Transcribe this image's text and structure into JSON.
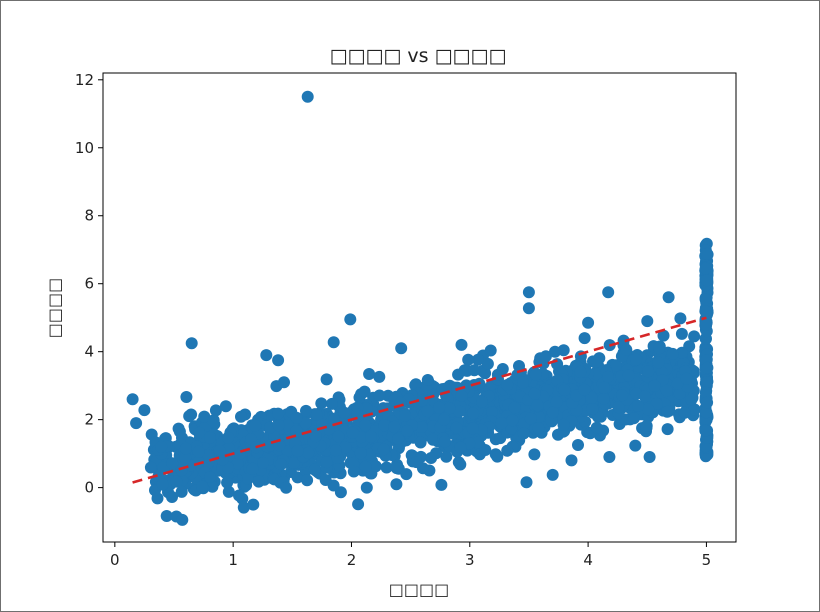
{
  "chart_data": {
    "type": "scatter",
    "title": "□□□□ vs □□□□",
    "xlabel": "□□□□",
    "ylabel": "□□□□",
    "xlim": [
      -0.1,
      5.25
    ],
    "ylim": [
      -1.6,
      12.2
    ],
    "xticks": [
      "0",
      "1",
      "2",
      "3",
      "4",
      "5"
    ],
    "yticks": [
      "0",
      "2",
      "4",
      "6",
      "8",
      "10",
      "12"
    ],
    "grid": false,
    "legend": "none",
    "colors": {
      "points": "#1f77b4",
      "reference_line": "#d62728"
    },
    "series": [
      {
        "kind": "points",
        "generated_bulk": {
          "count": 1800,
          "x_min": 0.3,
          "x_max": 4.9,
          "y_at_x_min": 0.6,
          "y_at_x_max": 3.3,
          "y_spread": 0.55
        },
        "cap_column": {
          "x": 5.0,
          "y_min": 0.9,
          "y_max": 7.2,
          "count": 160
        },
        "outliers": [
          [
            1.63,
            11.5
          ],
          [
            0.65,
            4.25
          ],
          [
            1.99,
            4.95
          ],
          [
            1.85,
            4.28
          ],
          [
            0.15,
            2.6
          ],
          [
            0.18,
            1.9
          ],
          [
            0.25,
            2.28
          ],
          [
            0.52,
            -0.85
          ],
          [
            0.57,
            -0.95
          ],
          [
            1.17,
            -0.5
          ],
          [
            2.13,
            0.0
          ],
          [
            2.76,
            0.08
          ],
          [
            3.5,
            5.75
          ],
          [
            3.5,
            5.28
          ],
          [
            4.17,
            5.75
          ],
          [
            4.68,
            5.6
          ],
          [
            4.5,
            4.9
          ],
          [
            4.52,
            0.9
          ],
          [
            4.18,
            0.9
          ],
          [
            3.86,
            0.8
          ],
          [
            2.93,
            4.2
          ],
          [
            2.42,
            4.1
          ],
          [
            2.55,
            0.75
          ],
          [
            2.92,
            0.68
          ],
          [
            1.38,
            3.75
          ],
          [
            1.28,
            3.9
          ],
          [
            1.43,
            3.1
          ],
          [
            4.0,
            4.85
          ],
          [
            4.6,
            4.1
          ],
          [
            3.72,
            4.0
          ],
          [
            3.97,
            4.4
          ],
          [
            4.78,
            4.98
          ]
        ]
      },
      {
        "kind": "reference_line",
        "style": "dashed",
        "x": [
          0.15,
          5.0
        ],
        "y": [
          0.15,
          5.0
        ]
      }
    ]
  }
}
